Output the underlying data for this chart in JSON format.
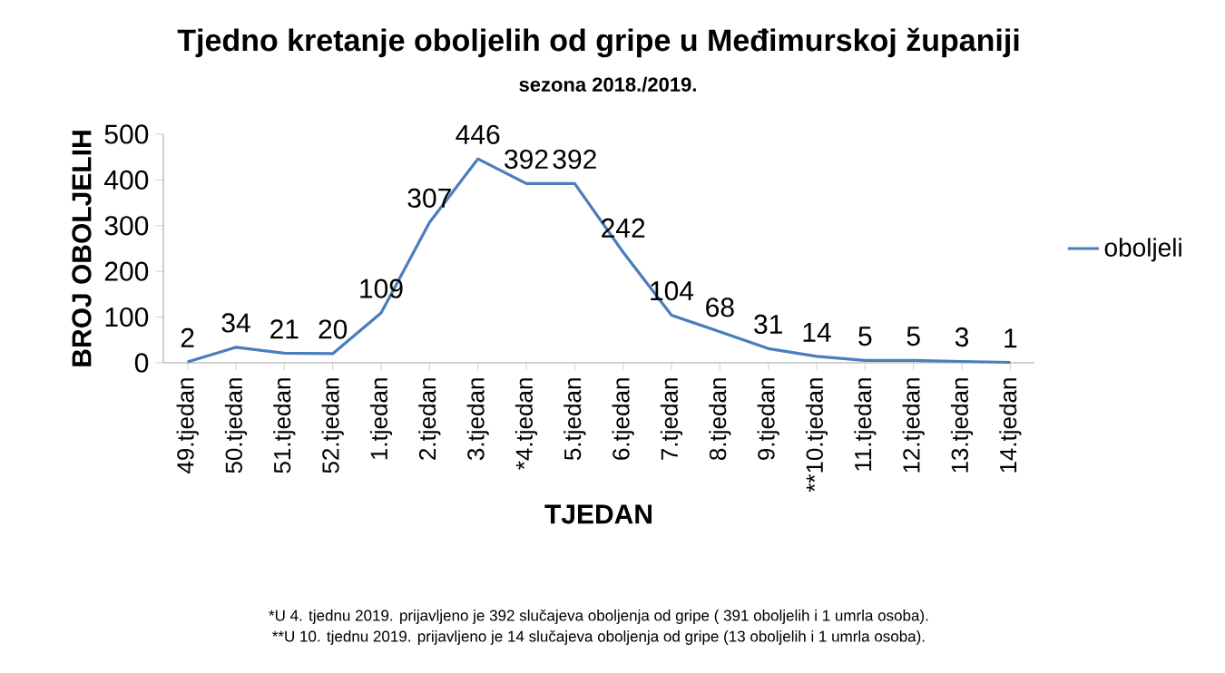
{
  "chart_data": {
    "type": "line",
    "title": "Tjedno kretanje oboljelih od gripe u Međimurskoj županiji",
    "subtitle": "sezona 2018./2019.",
    "xlabel": "TJEDAN",
    "ylabel": "BROJ OBOLJELIH",
    "categories": [
      "49.tjedan",
      "50.tjedan",
      "51.tjedan",
      "52.tjedan",
      "1.tjedan",
      "2.tjedan",
      "3.tjedan",
      "*4.tjedan",
      "5.tjedan",
      "6.tjedan",
      "7.tjedan",
      "8.tjedan",
      "9.tjedan",
      "**10.tjedan",
      "11.tjedan",
      "12.tjedan",
      "13.tjedan",
      "14.tjedan"
    ],
    "series": [
      {
        "name": "oboljeli",
        "color": "#4a7ebb",
        "values": [
          2,
          34,
          21,
          20,
          109,
          307,
          446,
          392,
          392,
          242,
          104,
          68,
          31,
          14,
          5,
          5,
          3,
          1
        ]
      }
    ],
    "ylim": [
      0,
      500
    ],
    "yticks": [
      0,
      100,
      200,
      300,
      400,
      500
    ],
    "data_labels": true,
    "legend": "right",
    "grid": false,
    "marker": "none",
    "annotations": [
      "*U 4. tjednu 2019. prijavljeno je 392 slučajeva oboljenja od gripe  ( 391 oboljelih i 1 umrla osoba).",
      "**U 10. tjednu 2019. prijavljeno je 14 slučajeva oboljenja od gripe (13 oboljelih i 1 umrla osoba)."
    ]
  }
}
